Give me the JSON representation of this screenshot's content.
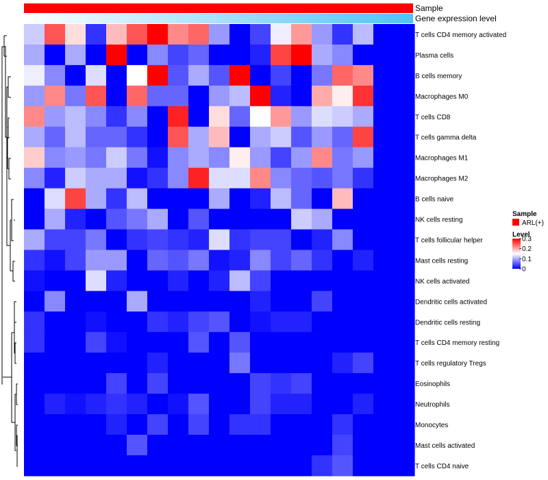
{
  "chart_data": {
    "type": "heatmap",
    "title": "",
    "annotation_tracks": [
      {
        "name": "Sample",
        "label": "Sample",
        "fill": "solid",
        "color": "#ff0000"
      },
      {
        "name": "Gene expression level",
        "label": "Gene expression level",
        "fill": "gradient",
        "color_from": "#ffffff",
        "color_to": "#4fc3f7"
      }
    ],
    "rows": [
      "T cells CD4 memory activated",
      "Plasma cells",
      "B cells memory",
      "Macrophages M0",
      "T cells CD8",
      "T cells gamma delta",
      "Macrophages M1",
      "Macrophages M2",
      "B cells naive",
      "NK cells resting",
      "T cells follicular helper",
      "Mast cells resting",
      "NK cells activated",
      "Dendritic cells activated",
      "Dendritic cells resting",
      "T cells CD4 memory resting",
      "T cells regulatory  Tregs",
      "Eosinophils",
      "Neutrophils",
      "Monocytes",
      "Mast cells activated",
      "T cells CD4 naive"
    ],
    "columns": 19,
    "values": [
      [
        0.12,
        0.25,
        0.17,
        0.03,
        0.19,
        0.25,
        0.3,
        0.22,
        0.24,
        0.09,
        0.0,
        0.04,
        0.14,
        0.21,
        0.09,
        0.03,
        0.11,
        null,
        null
      ],
      [
        0.1,
        0.0,
        0.1,
        0.0,
        0.3,
        0.0,
        0.08,
        0.04,
        0.06,
        0.0,
        0.0,
        0.02,
        0.26,
        0.3,
        0.1,
        0.08,
        0.0,
        null,
        null
      ],
      [
        0.14,
        0.08,
        0.0,
        0.13,
        0.0,
        0.15,
        0.3,
        0.05,
        0.1,
        0.05,
        0.3,
        0.0,
        0.04,
        0.0,
        0.07,
        0.24,
        0.22,
        null,
        null
      ],
      [
        0.09,
        0.22,
        0.07,
        0.25,
        0.0,
        0.24,
        0.06,
        0.06,
        0.0,
        0.09,
        0.11,
        0.3,
        0.02,
        0.0,
        0.2,
        0.16,
        0.27,
        null,
        null
      ],
      [
        0.22,
        0.09,
        0.11,
        0.08,
        0.03,
        0.08,
        0.0,
        0.28,
        0.0,
        0.17,
        0.06,
        0.15,
        0.21,
        0.09,
        0.13,
        0.12,
        0.1,
        null,
        null
      ],
      [
        0.1,
        0.06,
        0.11,
        0.06,
        0.06,
        0.03,
        0.0,
        0.25,
        0.1,
        0.19,
        0.0,
        0.1,
        0.12,
        0.05,
        0.09,
        0.06,
        0.26,
        null,
        null
      ],
      [
        0.18,
        0.08,
        0.09,
        0.07,
        0.12,
        0.07,
        0.01,
        0.08,
        0.1,
        0.08,
        0.16,
        0.09,
        0.04,
        0.09,
        0.22,
        0.07,
        0.09,
        null,
        null
      ],
      [
        0.08,
        0.02,
        0.12,
        0.1,
        0.1,
        0.01,
        0.03,
        0.08,
        0.28,
        0.13,
        0.13,
        0.22,
        0.08,
        0.06,
        0.05,
        0.07,
        0.03,
        null,
        null
      ],
      [
        0.0,
        0.13,
        0.26,
        0.1,
        0.03,
        0.11,
        0.0,
        0.0,
        0.0,
        0.1,
        0.0,
        0.02,
        0.11,
        0.06,
        0.0,
        0.19,
        0.0,
        null,
        null
      ],
      [
        0.0,
        0.1,
        0.02,
        0.0,
        0.05,
        0.07,
        0.1,
        0.0,
        0.05,
        0.0,
        0.0,
        0.0,
        0.0,
        0.12,
        0.1,
        0.0,
        0.0,
        null,
        null
      ],
      [
        0.1,
        0.04,
        0.04,
        0.07,
        0.0,
        0.03,
        0.04,
        0.03,
        0.02,
        0.13,
        0.03,
        0.04,
        0.04,
        0.0,
        0.02,
        0.08,
        0.0,
        null,
        null
      ],
      [
        0.03,
        0.01,
        0.04,
        0.09,
        0.09,
        0.0,
        0.06,
        0.05,
        0.07,
        0.01,
        0.02,
        0.08,
        0.04,
        0.06,
        0.03,
        0.0,
        0.02,
        null,
        null
      ],
      [
        0.01,
        0.0,
        0.0,
        0.13,
        0.02,
        0.0,
        0.0,
        0.02,
        0.0,
        0.02,
        0.11,
        0.04,
        0.0,
        0.0,
        0.0,
        0.0,
        0.0,
        null,
        null
      ],
      [
        0.0,
        0.08,
        0.0,
        0.0,
        0.0,
        0.1,
        0.0,
        0.0,
        0.0,
        0.0,
        0.0,
        0.02,
        0.0,
        0.0,
        0.04,
        0.0,
        0.0,
        null,
        null
      ],
      [
        0.03,
        0.0,
        0.0,
        0.01,
        0.0,
        0.0,
        0.03,
        0.02,
        0.04,
        0.05,
        0.0,
        0.01,
        0.02,
        0.02,
        0.0,
        0.0,
        0.0,
        null,
        null
      ],
      [
        0.03,
        0.0,
        0.0,
        0.04,
        0.01,
        0.0,
        0.0,
        0.0,
        0.05,
        0.0,
        0.05,
        0.0,
        0.0,
        0.0,
        0.0,
        0.0,
        0.0,
        null,
        null
      ],
      [
        0.0,
        0.0,
        0.0,
        0.0,
        0.0,
        0.0,
        0.02,
        0.0,
        0.0,
        0.0,
        0.07,
        0.0,
        0.0,
        0.0,
        0.0,
        0.02,
        0.04,
        null,
        null
      ],
      [
        0.0,
        0.0,
        0.0,
        0.0,
        0.04,
        0.0,
        0.04,
        0.0,
        0.0,
        0.0,
        0.0,
        0.04,
        0.03,
        0.04,
        0.0,
        0.0,
        0.0,
        null,
        null
      ],
      [
        0.0,
        0.02,
        0.01,
        0.02,
        0.03,
        0.02,
        0.0,
        0.01,
        0.05,
        0.0,
        0.0,
        0.04,
        0.02,
        0.02,
        0.0,
        0.0,
        0.02,
        null,
        null
      ],
      [
        0.0,
        0.0,
        0.0,
        0.0,
        0.02,
        0.0,
        0.04,
        0.0,
        0.04,
        0.0,
        0.03,
        0.03,
        0.0,
        0.0,
        0.0,
        0.03,
        0.0,
        null,
        null
      ],
      [
        0.0,
        0.0,
        0.0,
        0.0,
        0.0,
        0.05,
        0.0,
        0.0,
        0.0,
        0.0,
        0.0,
        0.0,
        0.0,
        0.0,
        0.0,
        0.04,
        0.0,
        null,
        null
      ],
      [
        0.0,
        0.0,
        0.0,
        0.0,
        0.0,
        0.0,
        0.0,
        0.0,
        0.0,
        0.0,
        0.0,
        0.0,
        0.0,
        0.0,
        0.03,
        0.05,
        0.0,
        null,
        null
      ]
    ],
    "color_scale": {
      "min": 0,
      "max": 0.3,
      "stops": [
        {
          "value": 0,
          "color": "#0000ff"
        },
        {
          "value": 0.15,
          "color": "#ffffff"
        },
        {
          "value": 0.3,
          "color": "#ff0000"
        }
      ]
    },
    "legend": {
      "position": "right",
      "sample_title": "Sample",
      "sample_item": "ARL(+)",
      "level_title": "Level",
      "level_ticks": [
        "0.3",
        "0.2",
        "0.1",
        "0"
      ],
      "level_tick_values": [
        0.3,
        0.2,
        0.1,
        0
      ]
    },
    "dendrogram": "rows, left"
  }
}
